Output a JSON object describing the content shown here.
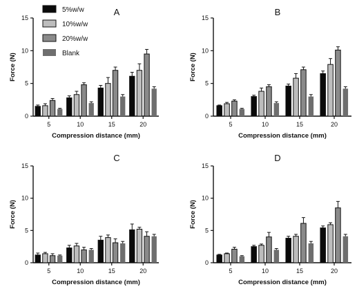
{
  "chart_data": [
    {
      "type": "bar",
      "panel": "A",
      "categories": [
        "5",
        "10",
        "15",
        "20"
      ],
      "xlabel": "Compression distance (mm)",
      "ylabel": "Force (N)",
      "ylim": [
        0,
        15
      ],
      "yticks": [
        "0",
        "5",
        "10",
        "15"
      ],
      "series": [
        {
          "name": "5%w/w",
          "values": [
            1.5,
            2.8,
            4.3,
            6.1
          ],
          "errors": [
            0.2,
            0.3,
            0.4,
            0.6
          ]
        },
        {
          "name": "10%w/w",
          "values": [
            1.6,
            3.3,
            5.0,
            7.0
          ],
          "errors": [
            0.3,
            0.5,
            0.9,
            1.0
          ]
        },
        {
          "name": "20%w/w",
          "values": [
            2.4,
            4.8,
            7.0,
            9.5
          ],
          "errors": [
            0.3,
            0.3,
            0.5,
            0.7
          ]
        },
        {
          "name": "Blank",
          "values": [
            1.1,
            2.0,
            3.0,
            4.2
          ],
          "errors": [
            0.1,
            0.2,
            0.3,
            0.3
          ]
        }
      ]
    },
    {
      "type": "bar",
      "panel": "B",
      "categories": [
        "5",
        "10",
        "15",
        "20"
      ],
      "xlabel": "Compression distance (mm)",
      "ylabel": "Force (N)",
      "ylim": [
        0,
        15
      ],
      "yticks": [
        "0",
        "5",
        "10",
        "15"
      ],
      "series": [
        {
          "name": "5%w/w",
          "values": [
            1.6,
            3.0,
            4.6,
            6.5
          ],
          "errors": [
            0.1,
            0.2,
            0.3,
            0.4
          ]
        },
        {
          "name": "10%w/w",
          "values": [
            1.9,
            3.8,
            5.8,
            7.9
          ],
          "errors": [
            0.2,
            0.5,
            0.7,
            0.9
          ]
        },
        {
          "name": "20%w/w",
          "values": [
            2.3,
            4.5,
            7.1,
            10.1
          ],
          "errors": [
            0.2,
            0.3,
            0.4,
            0.5
          ]
        },
        {
          "name": "Blank",
          "values": [
            1.1,
            2.0,
            3.0,
            4.2
          ],
          "errors": [
            0.1,
            0.2,
            0.3,
            0.3
          ]
        }
      ]
    },
    {
      "type": "bar",
      "panel": "C",
      "categories": [
        "5",
        "10",
        "15",
        "20"
      ],
      "xlabel": "Compression distance (mm)",
      "ylabel": "Force (N)",
      "ylim": [
        0,
        15
      ],
      "yticks": [
        "0",
        "5",
        "10",
        "15"
      ],
      "series": [
        {
          "name": "5%w/w",
          "values": [
            1.2,
            2.3,
            3.5,
            5.1
          ],
          "errors": [
            0.3,
            0.4,
            0.6,
            0.9
          ]
        },
        {
          "name": "10%w/w",
          "values": [
            1.4,
            2.6,
            3.9,
            5.2
          ],
          "errors": [
            0.2,
            0.4,
            0.4,
            0.3
          ]
        },
        {
          "name": "20%w/w",
          "values": [
            1.1,
            2.0,
            3.1,
            4.1
          ],
          "errors": [
            0.3,
            0.4,
            0.6,
            0.7
          ]
        },
        {
          "name": "Blank",
          "values": [
            1.1,
            2.0,
            3.0,
            4.1
          ],
          "errors": [
            0.1,
            0.2,
            0.3,
            0.3
          ]
        }
      ]
    },
    {
      "type": "bar",
      "panel": "D",
      "categories": [
        "5",
        "10",
        "15",
        "20"
      ],
      "xlabel": "Compression distance (mm)",
      "ylabel": "Force (N)",
      "ylim": [
        0,
        15
      ],
      "yticks": [
        "0",
        "5",
        "10",
        "15"
      ],
      "series": [
        {
          "name": "5%w/w",
          "values": [
            1.2,
            2.5,
            3.8,
            5.4
          ],
          "errors": [
            0.1,
            0.2,
            0.3,
            0.3
          ]
        },
        {
          "name": "10%w/w",
          "values": [
            1.4,
            2.7,
            4.1,
            5.9
          ],
          "errors": [
            0.1,
            0.2,
            0.3,
            0.3
          ]
        },
        {
          "name": "20%w/w",
          "values": [
            2.1,
            4.0,
            6.1,
            8.5
          ],
          "errors": [
            0.3,
            0.7,
            0.9,
            1.0
          ]
        },
        {
          "name": "Blank",
          "values": [
            1.0,
            2.0,
            3.0,
            4.1
          ],
          "errors": [
            0.1,
            0.2,
            0.3,
            0.3
          ]
        }
      ]
    }
  ],
  "legend": {
    "items": [
      "5%w/w",
      "10%w/w",
      "20%w/w",
      "Blank"
    ],
    "placement": "top-left"
  },
  "colors": {
    "5%w/w": "#0a0a0a",
    "10%w/w": "#bdbdbd",
    "20%w/w": "#8a8a8a",
    "Blank": "#6e6e6e",
    "axis": "#111111"
  }
}
